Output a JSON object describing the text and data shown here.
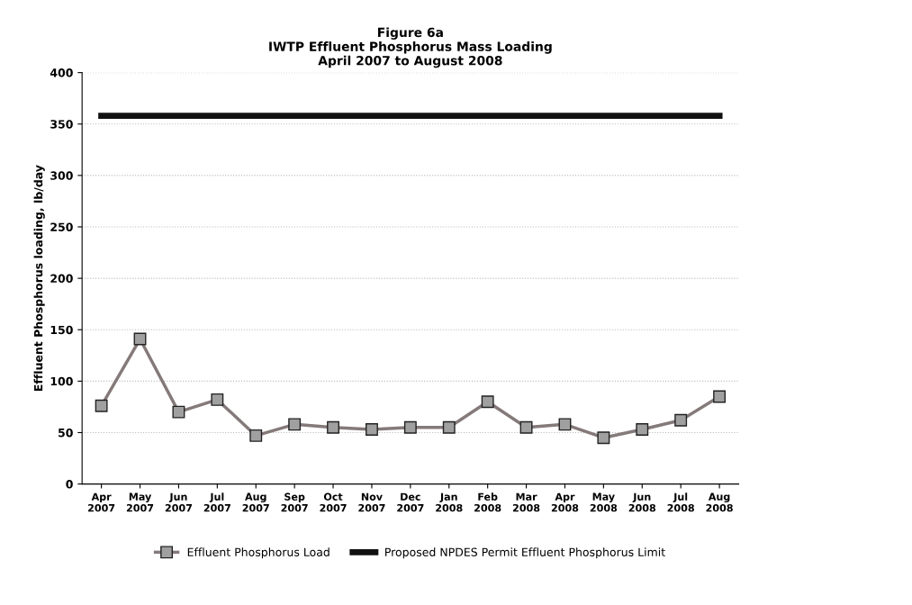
{
  "chart_data": {
    "type": "line",
    "title": "Figure 6a\nIWTP Effluent Phosphorus Mass Loading\nApril 2007 to August 2008",
    "ylabel": "Effluent Phosphorus loading, lb/day",
    "categories": [
      "Apr\n2007",
      "May\n2007",
      "Jun\n2007",
      "Jul\n2007",
      "Aug\n2007",
      "Sep\n2007",
      "Oct\n2007",
      "Nov\n2007",
      "Dec\n2007",
      "Jan\n2008",
      "Feb\n2008",
      "Mar\n2008",
      "Apr\n2008",
      "May\n2008",
      "Jun\n2008",
      "Jul\n2008",
      "Aug\n2008"
    ],
    "series": [
      {
        "name": "Effluent Phosphorus Load",
        "color": "#857a7a",
        "marker": "square",
        "values": [
          76,
          141,
          70,
          82,
          47,
          58,
          55,
          53,
          55,
          55,
          80,
          55,
          58,
          45,
          53,
          62,
          85
        ]
      },
      {
        "name": "Proposed NPDES Permit Effluent Phosphorus Limit",
        "color": "#111111",
        "marker": "none",
        "values": [
          358,
          358,
          358,
          358,
          358,
          358,
          358,
          358,
          358,
          358,
          358,
          358,
          358,
          358,
          358,
          358,
          358
        ]
      }
    ],
    "ylim": [
      0,
      400
    ],
    "yticks": [
      0,
      50,
      100,
      150,
      200,
      250,
      300,
      350,
      400
    ],
    "grid": "y",
    "legend": "bottom"
  }
}
